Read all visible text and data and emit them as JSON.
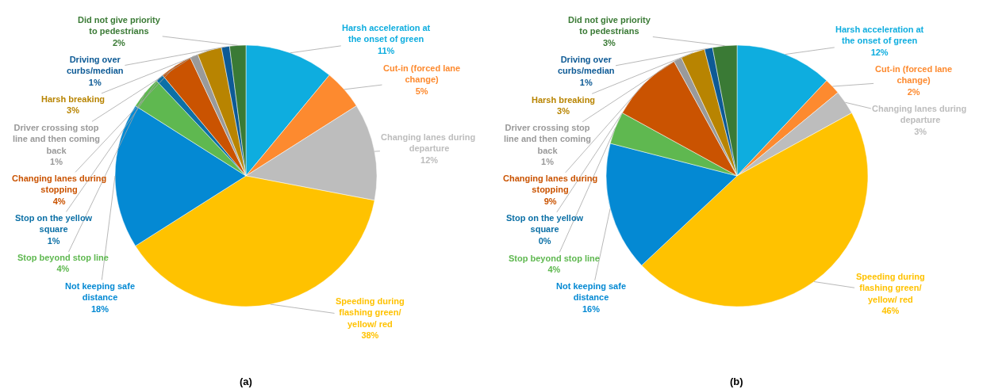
{
  "chart_data": [
    {
      "type": "pie",
      "annotations": [
        "(a)"
      ],
      "categories": [
        "Harsh acceleration at the onset of green",
        "Cut-in (forced lane change)",
        "Changing lanes during  departure",
        "Speeding during flashing green/ yellow/ red",
        "Not keeping safe distance",
        "Stop beyond stop line",
        "Stop on the yellow square",
        "Changing lanes during stopping",
        "Driver crossing stop line and then coming back",
        "Harsh breaking",
        "Driving over curbs/median",
        "Did not give priority to pedestrians"
      ],
      "values": [
        11,
        5,
        12,
        38,
        18,
        4,
        1,
        4,
        1,
        3,
        1,
        2
      ],
      "value_labels": [
        "11%",
        "5%",
        "12%",
        "38%",
        "18%",
        "4%",
        "1%",
        "4%",
        "1%",
        "3%",
        "1%",
        "2%"
      ],
      "colors": [
        "#0eaddf",
        "#fd8a2f",
        "#bdbdbd",
        "#ffc200",
        "#0489d3",
        "#5fb850",
        "#0c70a6",
        "#ca5301",
        "#9a9a9a",
        "#b88401",
        "#0d5a95",
        "#3a7a35"
      ]
    },
    {
      "type": "pie",
      "annotations": [
        "(b)"
      ],
      "categories": [
        "Harsh acceleration at the onset of green",
        "Cut-in (forced lane change)",
        "Changing lanes during  departure",
        "Speeding during flashing green/ yellow/ red",
        "Not keeping safe distance",
        "Stop beyond stop line",
        "Stop on the yellow square",
        "Changing lanes during stopping",
        "Driver crossing stop line and then coming back",
        "Harsh breaking",
        "Driving over curbs/median",
        "Did not give priority to pedestrians"
      ],
      "values": [
        12,
        2,
        3,
        46,
        16,
        4,
        0,
        9,
        1,
        3,
        1,
        3
      ],
      "value_labels": [
        "12%",
        "2%",
        "3%",
        "46%",
        "16%",
        "4%",
        "0%",
        "9%",
        "1%",
        "3%",
        "1%",
        "3%"
      ],
      "colors": [
        "#0eaddf",
        "#fd8a2f",
        "#bdbdbd",
        "#ffc200",
        "#0489d3",
        "#5fb850",
        "#0c70a6",
        "#ca5301",
        "#9a9a9a",
        "#b88401",
        "#0d5a95",
        "#3a7a35"
      ]
    }
  ]
}
